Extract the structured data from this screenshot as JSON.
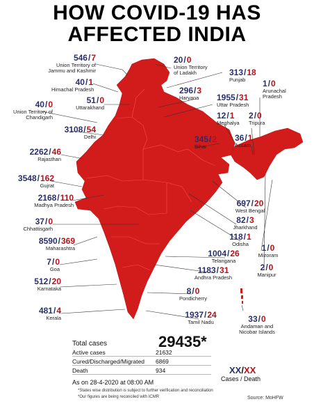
{
  "title_line1": "HOW COVID-19 HAS",
  "title_line2": "AFFECTED INDIA",
  "states": [
    {
      "cases": "546",
      "deaths": "7",
      "name": "Union Territory of\nJammu and Kashmir"
    },
    {
      "cases": "40",
      "deaths": "1",
      "name": "Himachal Pradesh"
    },
    {
      "cases": "51",
      "deaths": "0",
      "name": "Uttarakhand"
    },
    {
      "cases": "40",
      "deaths": "0",
      "name": "Union Territory of\nChandigarh"
    },
    {
      "cases": "3108",
      "deaths": "54",
      "name": "Delhi"
    },
    {
      "cases": "2262",
      "deaths": "46",
      "name": "Rajasthan"
    },
    {
      "cases": "3548",
      "deaths": "162",
      "name": "Gujrat"
    },
    {
      "cases": "2168",
      "deaths": "110",
      "name": "Madhya Pradesh"
    },
    {
      "cases": "37",
      "deaths": "0",
      "name": "Chhattisgarh"
    },
    {
      "cases": "8590",
      "deaths": "369",
      "name": "Maharashtra"
    },
    {
      "cases": "7",
      "deaths": "0",
      "name": "Goa"
    },
    {
      "cases": "512",
      "deaths": "20",
      "name": "Karnataka"
    },
    {
      "cases": "481",
      "deaths": "4",
      "name": "Kerala"
    },
    {
      "cases": "20",
      "deaths": "0",
      "name": "Union Territory\nof Ladakh"
    },
    {
      "cases": "313",
      "deaths": "18",
      "name": "Punjab"
    },
    {
      "cases": "296",
      "deaths": "3",
      "name": "Haryana"
    },
    {
      "cases": "1955",
      "deaths": "31",
      "name": "Uttar Pradesh"
    },
    {
      "cases": "1",
      "deaths": "0",
      "name": "Arunachal\nPradesh"
    },
    {
      "cases": "12",
      "deaths": "1",
      "name": "Meghalya"
    },
    {
      "cases": "2",
      "deaths": "0",
      "name": "Tripura"
    },
    {
      "cases": "345",
      "deaths": "2",
      "name": "Bihar"
    },
    {
      "cases": "36",
      "deaths": "1",
      "name": "Assam"
    },
    {
      "cases": "697",
      "deaths": "20",
      "name": "West Bengal"
    },
    {
      "cases": "82",
      "deaths": "3",
      "name": "Jharkhand"
    },
    {
      "cases": "118",
      "deaths": "1",
      "name": "Odisha"
    },
    {
      "cases": "1004",
      "deaths": "26",
      "name": "Telangana"
    },
    {
      "cases": "1",
      "deaths": "0",
      "name": "Mizoram"
    },
    {
      "cases": "2",
      "deaths": "0",
      "name": "Manipur"
    },
    {
      "cases": "1183",
      "deaths": "31",
      "name": "Andhra Pradesh"
    },
    {
      "cases": "8",
      "deaths": "0",
      "name": "Pondicherry"
    },
    {
      "cases": "1937",
      "deaths": "24",
      "name": "Tamil Nadu"
    },
    {
      "cases": "33",
      "deaths": "0",
      "name": "Andaman and\nNicobar Islands"
    }
  ],
  "summary": {
    "total_label": "Total cases",
    "total_value": "29435*",
    "active_label": "Active cases",
    "active_value": "21632",
    "cured_label": "Cured/Discharged/Migrated",
    "cured_value": "6869",
    "death_label": "Death",
    "death_value": "934",
    "as_on": "As on 28-4-2020 at 08:00 AM",
    "note1": "*States wise distribution is subject to further verification and reconciliation",
    "note2": "*Our figures are being reconciled with ICMR"
  },
  "legend": {
    "cases": "XX",
    "deaths": "XX",
    "cases_label": "Cases",
    "deaths_label": "Death"
  },
  "source": "Source: MoHFW",
  "colors": {
    "map": "#d21b1b",
    "cases": "#2a2f6b",
    "deaths": "#b5131b"
  }
}
